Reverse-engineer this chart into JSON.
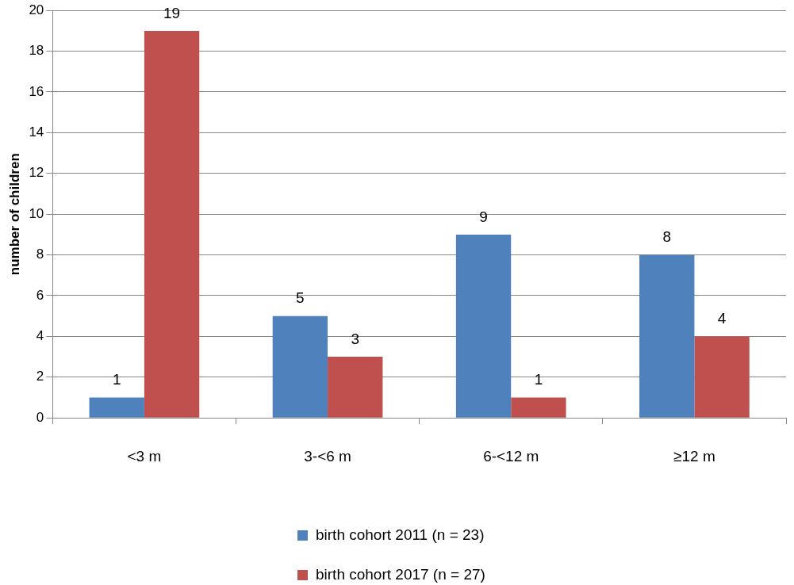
{
  "chart_data": {
    "type": "bar",
    "ylabel": "number of children",
    "categories": [
      "<3 m",
      "3-<6 m",
      "6-<12 m",
      "≥12 m"
    ],
    "series": [
      {
        "name": "birth cohort 2011 (n = 23)",
        "color": "#4f81bd",
        "values": [
          1,
          5,
          9,
          8
        ]
      },
      {
        "name": "birth cohort 2017 (n = 27)",
        "color": "#c0504d",
        "values": [
          19,
          3,
          1,
          4
        ]
      }
    ],
    "ylim": [
      0,
      20
    ],
    "yticks": [
      0,
      2,
      4,
      6,
      8,
      10,
      12,
      14,
      16,
      18,
      20
    ],
    "grid": "y",
    "legend": "bottom",
    "data_labels": true
  }
}
